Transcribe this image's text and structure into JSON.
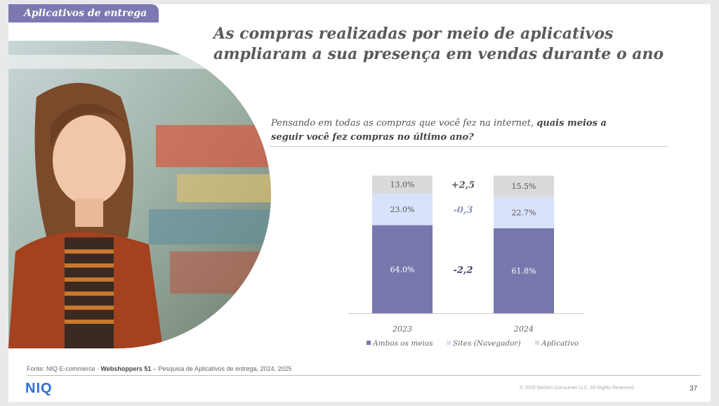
{
  "section_tag": "Aplicativos de entrega",
  "title_line1": "As compras realizadas por meio de aplicativos",
  "title_line2": "ampliaram a sua presença em vendas durante o ano",
  "question": {
    "normal": "Pensando em todas as compras que você fez na internet, ",
    "bold": "quais meios a seguir você fez compras no último ano?"
  },
  "chart_data": {
    "type": "bar",
    "stacked": true,
    "categories": [
      "2023",
      "2024"
    ],
    "series": [
      {
        "name": "Ambos os meios",
        "values": [
          64.0,
          61.8
        ],
        "labels": [
          "64.0%",
          "61.8%"
        ],
        "color": "#7678ad"
      },
      {
        "name": "Sites (Navegador)",
        "values": [
          23.0,
          22.7
        ],
        "labels": [
          "23.0%",
          "22.7%"
        ],
        "color": "#d9e2fb"
      },
      {
        "name": "Aplicativo",
        "values": [
          13.0,
          15.5
        ],
        "labels": [
          "13.0%",
          "15.5%"
        ],
        "color": "#dadada"
      }
    ],
    "differences": [
      {
        "series": "Aplicativo",
        "label": "+2,5",
        "color": "#555555"
      },
      {
        "series": "Sites (Navegador)",
        "label": "-0,3",
        "color": "#8d8fc4"
      },
      {
        "series": "Ambos os meios",
        "label": "-2,2",
        "color": "#3e3f66"
      }
    ],
    "ylim": [
      0,
      100
    ],
    "legend": "bottom"
  },
  "source": {
    "prefix": "Fonte: NIQ E-commerce - ",
    "bold": "Webshoppers 51",
    "suffix": " – Pesquisa de Aplicativos de entrega, 2024, 2025"
  },
  "logo": "NIQ",
  "copyright": "© 2025 Nielsen Consumer LLC. All Rights Reserved.",
  "page_number": "37"
}
